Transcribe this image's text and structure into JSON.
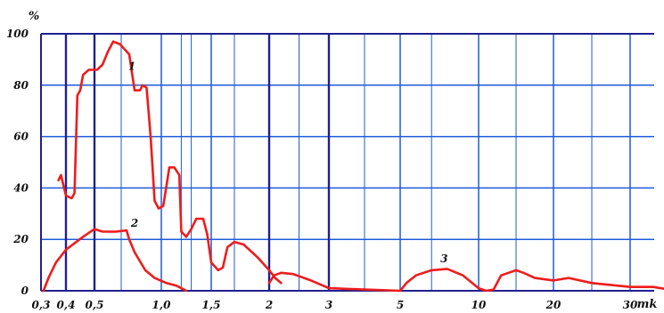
{
  "chart_data": {
    "type": "line",
    "title": "",
    "ylabel": "%",
    "xlabel": "mk",
    "ylim": [
      0,
      100
    ],
    "y_ticks": [
      "0",
      "20",
      "40",
      "60",
      "80",
      "100"
    ],
    "x_ticks": [
      "0,3",
      "0,4",
      "0,5",
      "1,0",
      "1,5",
      "2",
      "3",
      "5",
      "10",
      "20",
      "30"
    ],
    "x_tick_values": [
      0.3,
      0.4,
      0.5,
      1.0,
      1.5,
      2,
      3,
      5,
      10,
      20,
      30
    ],
    "grid": true,
    "colors": {
      "curve": "#ee1c1c",
      "grid": "#1e5bd7",
      "frame": "#1f1f8f"
    },
    "series": [
      {
        "name": "1",
        "points": [
          [
            0.37,
            43
          ],
          [
            0.38,
            45
          ],
          [
            0.4,
            37
          ],
          [
            0.42,
            36
          ],
          [
            0.43,
            38
          ],
          [
            0.44,
            76
          ],
          [
            0.45,
            78
          ],
          [
            0.46,
            84
          ],
          [
            0.48,
            86
          ],
          [
            0.52,
            86
          ],
          [
            0.56,
            88
          ],
          [
            0.6,
            93
          ],
          [
            0.64,
            97
          ],
          [
            0.69,
            96
          ],
          [
            0.76,
            92
          ],
          [
            0.8,
            78
          ],
          [
            0.84,
            78
          ],
          [
            0.86,
            80
          ],
          [
            0.89,
            79
          ],
          [
            0.92,
            60
          ],
          [
            0.95,
            35
          ],
          [
            0.98,
            32
          ],
          [
            1.02,
            33
          ],
          [
            1.08,
            48
          ],
          [
            1.13,
            48
          ],
          [
            1.18,
            45
          ],
          [
            1.2,
            23
          ],
          [
            1.25,
            21
          ],
          [
            1.3,
            24
          ],
          [
            1.35,
            28
          ],
          [
            1.42,
            28
          ],
          [
            1.46,
            22
          ],
          [
            1.5,
            11
          ],
          [
            1.56,
            8
          ],
          [
            1.6,
            9
          ],
          [
            1.64,
            17
          ],
          [
            1.7,
            19
          ],
          [
            1.78,
            18
          ],
          [
            1.9,
            13
          ],
          [
            2.0,
            8
          ],
          [
            2.1,
            5
          ],
          [
            2.2,
            3
          ]
        ]
      },
      {
        "name": "2",
        "points": [
          [
            0.31,
            0
          ],
          [
            0.33,
            5
          ],
          [
            0.36,
            11
          ],
          [
            0.4,
            16
          ],
          [
            0.46,
            21
          ],
          [
            0.5,
            24
          ],
          [
            0.56,
            23
          ],
          [
            0.66,
            23
          ],
          [
            0.74,
            23.5
          ],
          [
            0.76,
            20
          ],
          [
            0.8,
            15
          ],
          [
            0.88,
            8
          ],
          [
            0.95,
            5
          ],
          [
            1.05,
            3
          ],
          [
            1.15,
            2
          ],
          [
            1.25,
            0
          ]
        ]
      },
      {
        "name": "3",
        "points": [
          [
            2.0,
            3
          ],
          [
            2.08,
            6
          ],
          [
            2.2,
            7
          ],
          [
            2.4,
            6.5
          ],
          [
            2.7,
            4
          ],
          [
            3.0,
            1
          ],
          [
            5.0,
            0
          ],
          [
            5.4,
            3
          ],
          [
            6.0,
            6
          ],
          [
            7.0,
            8
          ],
          [
            8.0,
            8.5
          ],
          [
            9.0,
            6
          ],
          [
            10.0,
            1
          ],
          [
            11.0,
            0
          ],
          [
            12.0,
            0.5
          ],
          [
            13.0,
            6
          ],
          [
            14.0,
            7
          ],
          [
            15.0,
            8
          ],
          [
            16.0,
            7
          ],
          [
            17.5,
            5
          ],
          [
            20.0,
            4
          ],
          [
            22.0,
            5
          ],
          [
            25.0,
            3
          ],
          [
            30.0,
            1.5
          ],
          [
            33.0,
            1.5
          ],
          [
            36.0,
            0
          ]
        ]
      }
    ],
    "curve_labels": [
      {
        "text": "1",
        "x": 0.78,
        "y": 86
      },
      {
        "text": "2",
        "x": 0.8,
        "y": 25
      },
      {
        "text": "3",
        "x": 7.8,
        "y": 11
      }
    ]
  }
}
